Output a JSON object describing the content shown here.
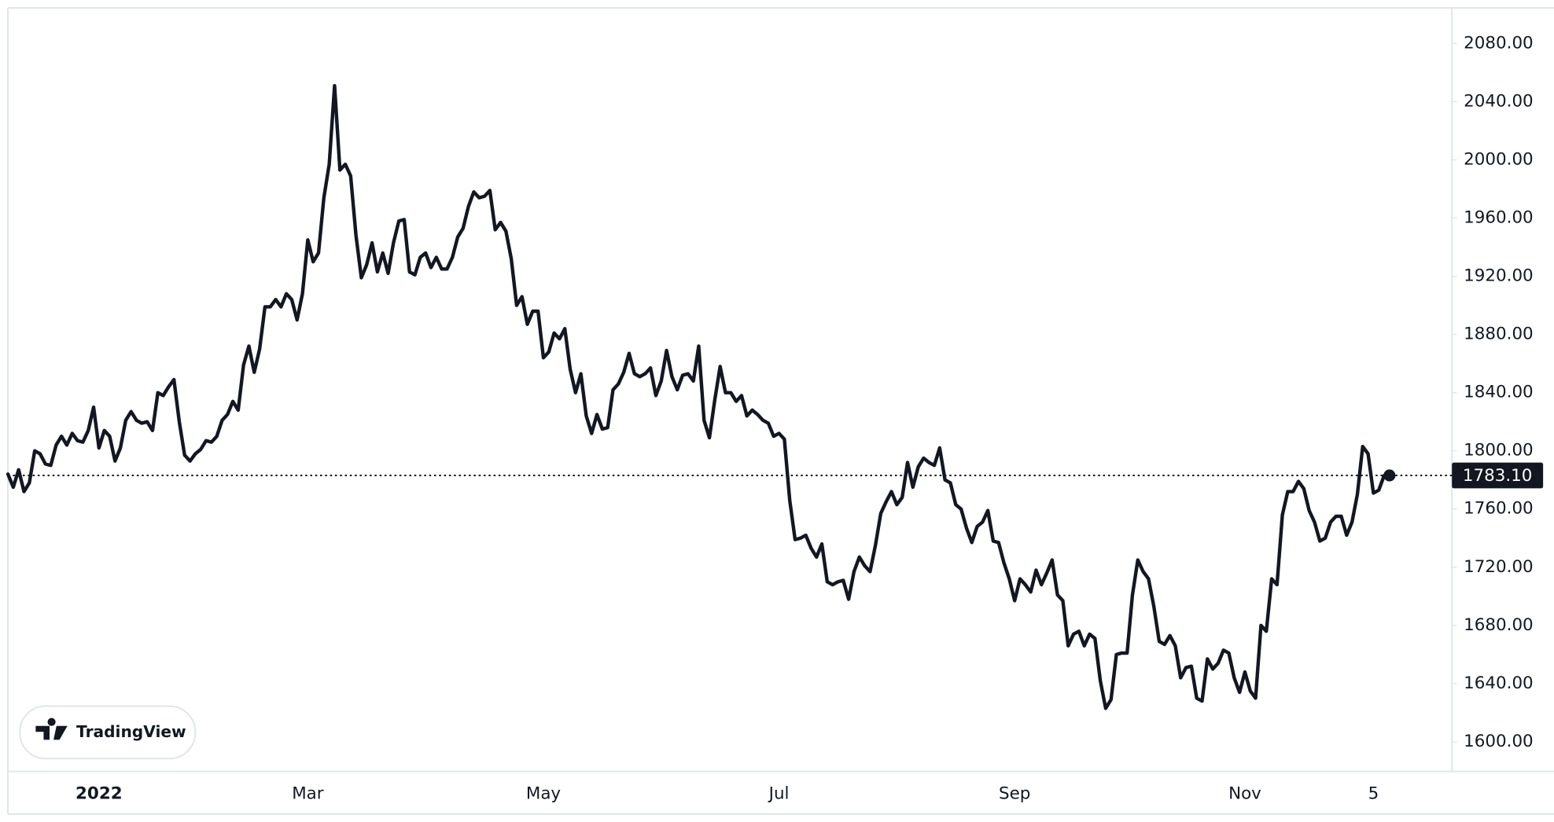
{
  "chart_data": {
    "type": "line",
    "watermark": "TradingView",
    "color": "#131722",
    "ylim": [
      1579.6,
      2103.1
    ],
    "yticks": [
      {
        "value": 1600,
        "label": "1600.00"
      },
      {
        "value": 1640,
        "label": "1640.00"
      },
      {
        "value": 1680,
        "label": "1680.00"
      },
      {
        "value": 1720,
        "label": "1720.00"
      },
      {
        "value": 1760,
        "label": "1760.00"
      },
      {
        "value": 1800,
        "label": "1800.00"
      },
      {
        "value": 1840,
        "label": "1840.00"
      },
      {
        "value": 1880,
        "label": "1880.00"
      },
      {
        "value": 1920,
        "label": "1920.00"
      },
      {
        "value": 1960,
        "label": "1960.00"
      },
      {
        "value": 2000,
        "label": "2000.00"
      },
      {
        "value": 2040,
        "label": "2040.00"
      },
      {
        "value": 2080,
        "label": "2080.00"
      }
    ],
    "grid": false,
    "price_line": {
      "value": 1783.1,
      "label": "1783.10"
    },
    "categories": [
      null,
      null,
      null,
      null,
      null,
      null,
      null,
      null,
      null,
      null,
      null,
      null,
      null,
      null,
      null,
      null,
      null,
      "2022",
      null,
      null,
      null,
      null,
      null,
      null,
      null,
      null,
      null,
      null,
      null,
      null,
      null,
      null,
      null,
      null,
      null,
      null,
      null,
      null,
      null,
      null,
      null,
      null,
      null,
      null,
      null,
      null,
      null,
      null,
      null,
      null,
      null,
      null,
      null,
      null,
      null,
      null,
      "Mar",
      null,
      null,
      null,
      null,
      null,
      null,
      null,
      null,
      null,
      null,
      null,
      null,
      null,
      null,
      null,
      null,
      null,
      null,
      null,
      null,
      null,
      null,
      null,
      null,
      null,
      null,
      null,
      null,
      null,
      null,
      null,
      null,
      null,
      null,
      null,
      null,
      null,
      null,
      null,
      null,
      null,
      null,
      null,
      "May",
      null,
      null,
      null,
      null,
      null,
      null,
      null,
      null,
      null,
      null,
      null,
      null,
      null,
      null,
      null,
      null,
      null,
      null,
      null,
      null,
      null,
      null,
      null,
      null,
      null,
      null,
      null,
      null,
      null,
      null,
      null,
      null,
      null,
      null,
      null,
      null,
      null,
      null,
      null,
      null,
      null,
      null,
      null,
      "Jul",
      null,
      null,
      null,
      null,
      null,
      null,
      null,
      null,
      null,
      null,
      null,
      null,
      null,
      null,
      null,
      null,
      null,
      null,
      null,
      null,
      null,
      null,
      null,
      null,
      null,
      null,
      null,
      null,
      null,
      null,
      null,
      null,
      null,
      null,
      null,
      null,
      null,
      null,
      null,
      null,
      null,
      null,
      null,
      "Sep",
      null,
      null,
      null,
      null,
      null,
      null,
      null,
      null,
      null,
      null,
      null,
      null,
      null,
      null,
      null,
      null,
      null,
      null,
      null,
      null,
      null,
      null,
      null,
      null,
      null,
      null,
      null,
      null,
      null,
      null,
      null,
      null,
      null,
      null,
      null,
      null,
      null,
      null,
      null,
      null,
      null,
      null,
      "Nov",
      null,
      null,
      null,
      null,
      null,
      null,
      null,
      null,
      null,
      null,
      null,
      null,
      null,
      null,
      null,
      null,
      null,
      null,
      null,
      null,
      null,
      null,
      null,
      "5",
      null,
      null,
      null
    ],
    "values": [
      1784,
      1775,
      1787,
      1772,
      1778,
      1800,
      1798,
      1791,
      1790,
      1804,
      1810,
      1804,
      1812,
      1807,
      1806,
      1814,
      1830,
      1802,
      1814,
      1810,
      1793,
      1802,
      1821,
      1827,
      1821,
      1819,
      1820,
      1814,
      1840,
      1838,
      1844,
      1849,
      1820,
      1797,
      1793,
      1798,
      1801,
      1807,
      1806,
      1810,
      1821,
      1825,
      1834,
      1828,
      1859,
      1872,
      1854,
      1870,
      1899,
      1899,
      1904,
      1899,
      1908,
      1904,
      1890,
      1908,
      1945,
      1930,
      1936,
      1974,
      1997,
      2051,
      1993,
      1997,
      1989,
      1948,
      1919,
      1928,
      1943,
      1923,
      1936,
      1922,
      1943,
      1958,
      1959,
      1923,
      1921,
      1933,
      1936,
      1926,
      1933,
      1925,
      1925,
      1933,
      1947,
      1953,
      1968,
      1978,
      1974,
      1975,
      1979,
      1952,
      1957,
      1951,
      1932,
      1900,
      1906,
      1887,
      1896,
      1896,
      1864,
      1868,
      1881,
      1877,
      1884,
      1856,
      1840,
      1853,
      1824,
      1812,
      1825,
      1815,
      1816,
      1842,
      1846,
      1854,
      1867,
      1853,
      1851,
      1853,
      1857,
      1838,
      1848,
      1869,
      1851,
      1842,
      1852,
      1853,
      1848,
      1872,
      1821,
      1809,
      1835,
      1858,
      1840,
      1840,
      1834,
      1838,
      1824,
      1828,
      1825,
      1821,
      1819,
      1810,
      1812,
      1808,
      1766,
      1739,
      1740,
      1742,
      1733,
      1727,
      1736,
      1710,
      1708,
      1710,
      1711,
      1698,
      1717,
      1727,
      1721,
      1717,
      1735,
      1757,
      1765,
      1772,
      1763,
      1768,
      1792,
      1775,
      1789,
      1795,
      1792,
      1790,
      1802,
      1780,
      1778,
      1763,
      1760,
      1747,
      1737,
      1748,
      1751,
      1759,
      1738,
      1737,
      1723,
      1712,
      1697,
      1712,
      1708,
      1703,
      1718,
      1708,
      1716,
      1725,
      1701,
      1697,
      1666,
      1674,
      1676,
      1666,
      1674,
      1671,
      1642,
      1623,
      1629,
      1660,
      1661,
      1661,
      1701,
      1725,
      1717,
      1712,
      1693,
      1669,
      1667,
      1673,
      1666,
      1644,
      1651,
      1652,
      1630,
      1628,
      1657,
      1650,
      1654,
      1663,
      1661,
      1644,
      1634,
      1648,
      1635,
      1630,
      1680,
      1676,
      1712,
      1708,
      1756,
      1772,
      1772,
      1779,
      1774,
      1759,
      1751,
      1738,
      1740,
      1751,
      1755,
      1755,
      1742,
      1751,
      1770,
      1803,
      1798,
      1771,
      1773,
      1783,
      1783.1
    ]
  }
}
